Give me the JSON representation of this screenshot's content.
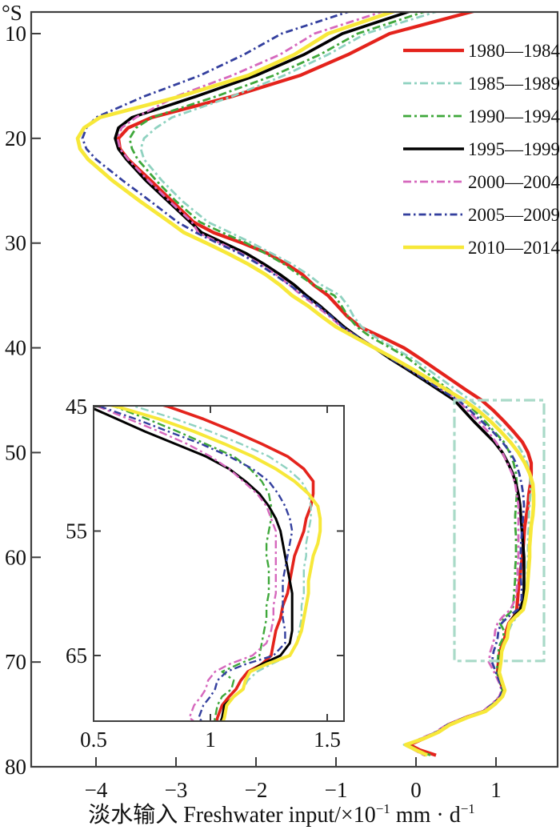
{
  "figure": {
    "y_unit": "°S",
    "xtitle": {
      "base1": "淡水输入 Freshwater input/×10",
      "sup1": "−1",
      "base2": " mm · d",
      "sup2": "−1"
    }
  },
  "legend": {
    "items": [
      {
        "label": "1980—1984"
      },
      {
        "label": "1985—1989"
      },
      {
        "label": "1990—1994"
      },
      {
        "label": "1995—1999"
      },
      {
        "label": "2000—2004"
      },
      {
        "label": "2005—2009"
      },
      {
        "label": "2010—2014"
      }
    ]
  },
  "chart_data": {
    "type": "line",
    "title": "",
    "xlabel": "淡水输入 Freshwater input/×10⁻¹ mm·d⁻¹",
    "ylabel": "°S (latitude, increasing downward)",
    "xlim": [
      -4.81,
      1.77
    ],
    "ylim": [
      7.9,
      80
    ],
    "grid": false,
    "legend_position": "upper right",
    "axes": {
      "x_tick_values": [
        -4,
        -3,
        -2,
        -1,
        0,
        1
      ],
      "x_tick_labels": [
        "−4",
        "−3",
        "−2",
        "−1",
        "0",
        "1"
      ],
      "y_tick_values": [
        10,
        20,
        30,
        40,
        50,
        60,
        70,
        80
      ],
      "y_tick_labels": [
        "10",
        "20",
        "30",
        "40",
        "50",
        "60",
        "70",
        "80"
      ]
    },
    "inset": {
      "xlim": [
        0.5,
        1.57
      ],
      "ylim": [
        44.9,
        70.3
      ],
      "x_tick_values": [
        0.5,
        1,
        1.5
      ],
      "x_tick_labels": [
        "0.5",
        "1",
        "1.5"
      ],
      "y_tick_values": [
        45,
        55,
        65
      ],
      "y_tick_labels": [
        "45",
        "55",
        "65"
      ]
    },
    "zoom_rect": {
      "v_min": 0.48,
      "v_max": 1.6,
      "lat_min": 45.0,
      "lat_max": 69.9,
      "color": "#a9dac8"
    },
    "latitudes": [
      7.8,
      10,
      12,
      14,
      16,
      18,
      19,
      20,
      21,
      22,
      24,
      26,
      28,
      29,
      30,
      31,
      32,
      33,
      34,
      35,
      36,
      37,
      38,
      39,
      40,
      41,
      42,
      43,
      44,
      45,
      46,
      47,
      48,
      49,
      50,
      51,
      52,
      53,
      54,
      55,
      56,
      57,
      58,
      59,
      60,
      61,
      62,
      63,
      64,
      65,
      65.7,
      66.3,
      67,
      67.7,
      68.3,
      69,
      70,
      71,
      72,
      72.7,
      73.3,
      74,
      74.7,
      75.3,
      76,
      76.7,
      77.3,
      77.9,
      78.4,
      78.9
    ],
    "series": [
      {
        "name": "1980—1984",
        "color": "#e4231c",
        "width": 4.2,
        "dash": "",
        "values": [
          0.75,
          -0.33,
          -0.85,
          -1.45,
          -2.3,
          -3.3,
          -3.6,
          -3.72,
          -3.7,
          -3.6,
          -3.32,
          -3.05,
          -2.78,
          -2.53,
          -2.17,
          -1.85,
          -1.62,
          -1.42,
          -1.28,
          -1.1,
          -0.98,
          -0.86,
          -0.7,
          -0.42,
          -0.15,
          0.05,
          0.24,
          0.43,
          0.62,
          0.82,
          0.97,
          1.1,
          1.22,
          1.33,
          1.4,
          1.44,
          1.44,
          1.43,
          1.41,
          1.4,
          1.38,
          1.36,
          1.35,
          1.34,
          1.33,
          1.31,
          1.3,
          1.28,
          1.27,
          1.26,
          1.22,
          1.16,
          1.13,
          1.11,
          1.08,
          1.05,
          1.03,
          1.02,
          1.06,
          1.09,
          1.06,
          0.97,
          0.85,
          0.62,
          0.4,
          0.27,
          0.1,
          -0.08,
          0.05,
          0.25
        ]
      },
      {
        "name": "1985—1989",
        "color": "#8fd2c0",
        "width": 2.8,
        "dash": "10 4 3 4",
        "values": [
          0.3,
          -0.63,
          -1.1,
          -1.65,
          -2.3,
          -3.05,
          -3.25,
          -3.4,
          -3.44,
          -3.4,
          -3.18,
          -2.92,
          -2.6,
          -2.32,
          -2.05,
          -1.8,
          -1.55,
          -1.35,
          -1.18,
          -0.95,
          -0.85,
          -0.78,
          -0.68,
          -0.5,
          -0.28,
          -0.05,
          0.14,
          0.32,
          0.5,
          0.68,
          0.85,
          1.0,
          1.13,
          1.25,
          1.33,
          1.39,
          1.42,
          1.43,
          1.43,
          1.42,
          1.41,
          1.41,
          1.4,
          1.4,
          1.4,
          1.39,
          1.39,
          1.38,
          1.37,
          1.34,
          1.26,
          1.2,
          1.16,
          1.14,
          1.1,
          1.07,
          1.05,
          1.03,
          1.07,
          1.1,
          1.07,
          0.98,
          0.87,
          0.65,
          0.42,
          0.28,
          0.1,
          -0.15,
          -0.02,
          0.15
        ]
      },
      {
        "name": "1990—1994",
        "color": "#3fa83b",
        "width": 2.8,
        "dash": "10 4 3 4",
        "values": [
          0.15,
          -0.73,
          -1.2,
          -1.78,
          -2.5,
          -3.3,
          -3.5,
          -3.58,
          -3.55,
          -3.48,
          -3.25,
          -3.0,
          -2.7,
          -2.42,
          -2.12,
          -1.88,
          -1.65,
          -1.47,
          -1.28,
          -1.02,
          -0.93,
          -0.85,
          -0.74,
          -0.56,
          -0.32,
          -0.1,
          0.07,
          0.24,
          0.41,
          0.59,
          0.73,
          0.86,
          0.98,
          1.1,
          1.17,
          1.22,
          1.25,
          1.26,
          1.26,
          1.25,
          1.24,
          1.24,
          1.25,
          1.25,
          1.25,
          1.24,
          1.24,
          1.23,
          1.22,
          1.21,
          1.12,
          1.05,
          1.1,
          1.09,
          1.05,
          1.03,
          1.02,
          1.01,
          1.05,
          1.08,
          1.05,
          0.96,
          0.84,
          0.61,
          0.4,
          0.26,
          0.08,
          -0.1,
          0.02,
          0.18
        ]
      },
      {
        "name": "1995—1999",
        "color": "#000000",
        "width": 3.6,
        "dash": "",
        "values": [
          -0.05,
          -0.92,
          -1.4,
          -2.0,
          -2.75,
          -3.55,
          -3.72,
          -3.76,
          -3.72,
          -3.62,
          -3.38,
          -3.1,
          -2.82,
          -2.68,
          -2.4,
          -2.12,
          -1.9,
          -1.7,
          -1.52,
          -1.37,
          -1.2,
          -1.05,
          -0.9,
          -0.72,
          -0.52,
          -0.33,
          -0.12,
          0.08,
          0.28,
          0.48,
          0.6,
          0.72,
          0.85,
          0.98,
          1.08,
          1.15,
          1.21,
          1.25,
          1.28,
          1.3,
          1.31,
          1.32,
          1.33,
          1.34,
          1.35,
          1.35,
          1.35,
          1.35,
          1.34,
          1.3,
          1.22,
          1.17,
          1.15,
          1.14,
          1.1,
          1.06,
          1.05,
          1.03,
          1.07,
          1.1,
          1.07,
          0.98,
          0.86,
          0.63,
          0.41,
          0.27,
          0.09,
          -0.11,
          0.0,
          0.12
        ]
      },
      {
        "name": "2000—2004",
        "color": "#d668bd",
        "width": 2.8,
        "dash": "10 4 3 4",
        "values": [
          -0.38,
          -1.27,
          -1.7,
          -2.3,
          -3.0,
          -3.5,
          -3.68,
          -3.73,
          -3.7,
          -3.6,
          -3.35,
          -3.08,
          -2.8,
          -2.72,
          -2.45,
          -2.18,
          -1.95,
          -1.75,
          -1.58,
          -1.43,
          -1.25,
          -1.08,
          -0.93,
          -0.73,
          -0.5,
          -0.3,
          -0.08,
          0.12,
          0.32,
          0.52,
          0.65,
          0.78,
          0.9,
          1.0,
          1.08,
          1.14,
          1.2,
          1.24,
          1.26,
          1.28,
          1.28,
          1.28,
          1.28,
          1.28,
          1.28,
          1.27,
          1.27,
          1.26,
          1.24,
          1.18,
          1.08,
          1.02,
          0.99,
          0.98,
          0.96,
          0.93,
          0.91,
          0.98,
          1.04,
          1.07,
          1.04,
          0.95,
          0.83,
          0.6,
          0.38,
          0.24,
          0.06,
          -0.12,
          -0.02,
          0.1
        ]
      },
      {
        "name": "2005—2009",
        "color": "#333f9e",
        "width": 2.8,
        "dash": "9 4 2.5 4",
        "values": [
          -0.8,
          -1.68,
          -2.15,
          -2.7,
          -3.4,
          -4.0,
          -4.12,
          -4.17,
          -4.12,
          -4.0,
          -3.67,
          -3.32,
          -2.98,
          -2.75,
          -2.48,
          -2.2,
          -1.97,
          -1.77,
          -1.58,
          -1.4,
          -1.22,
          -1.06,
          -0.92,
          -0.72,
          -0.52,
          -0.32,
          -0.1,
          0.1,
          0.31,
          0.53,
          0.68,
          0.82,
          0.96,
          1.08,
          1.18,
          1.25,
          1.29,
          1.32,
          1.34,
          1.35,
          1.34,
          1.33,
          1.32,
          1.31,
          1.31,
          1.31,
          1.31,
          1.32,
          1.32,
          1.27,
          1.15,
          1.07,
          1.03,
          1.02,
          1.0,
          0.97,
          0.95,
          1.0,
          1.05,
          1.08,
          1.05,
          0.96,
          0.84,
          0.61,
          0.39,
          0.25,
          0.07,
          -0.12,
          -0.01,
          0.12
        ]
      },
      {
        "name": "2010—2014",
        "color": "#f7e839",
        "width": 4.6,
        "dash": "",
        "values": [
          -0.25,
          -1.1,
          -1.52,
          -2.1,
          -2.95,
          -3.95,
          -4.15,
          -4.23,
          -4.2,
          -4.1,
          -3.8,
          -3.45,
          -3.08,
          -2.9,
          -2.62,
          -2.35,
          -2.1,
          -1.88,
          -1.7,
          -1.55,
          -1.35,
          -1.18,
          -1.0,
          -0.76,
          -0.52,
          -0.28,
          -0.05,
          0.17,
          0.38,
          0.6,
          0.78,
          0.93,
          1.06,
          1.18,
          1.28,
          1.36,
          1.42,
          1.46,
          1.47,
          1.47,
          1.46,
          1.44,
          1.43,
          1.42,
          1.42,
          1.41,
          1.4,
          1.39,
          1.37,
          1.34,
          1.24,
          1.17,
          1.15,
          1.14,
          1.1,
          1.07,
          1.06,
          1.04,
          1.08,
          1.11,
          1.08,
          0.99,
          0.87,
          0.64,
          0.42,
          0.28,
          0.1,
          -0.13,
          0.0,
          0.14
        ]
      }
    ]
  }
}
